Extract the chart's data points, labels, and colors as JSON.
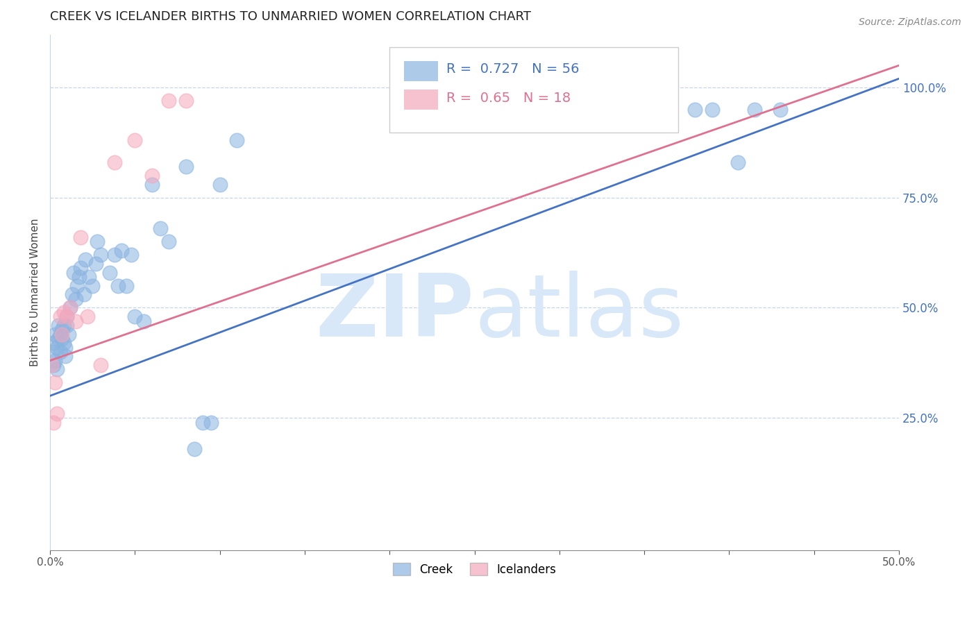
{
  "title": "CREEK VS ICELANDER BIRTHS TO UNMARRIED WOMEN CORRELATION CHART",
  "source": "Source: ZipAtlas.com",
  "ylabel": "Births to Unmarried Women",
  "xlim": [
    0.0,
    0.5
  ],
  "ylim": [
    -0.05,
    1.12
  ],
  "right_yticks": [
    0.0,
    0.25,
    0.5,
    0.75,
    1.0
  ],
  "creek_color": "#8ab4e0",
  "icelander_color": "#f5a8bc",
  "creek_line_color": "#4472c4",
  "icelander_line_color": "#e07090",
  "creek_R": 0.727,
  "creek_N": 56,
  "icelander_R": 0.65,
  "icelander_N": 18,
  "watermark_zip": "ZIP",
  "watermark_atlas": "atlas",
  "watermark_color": "#d8e8f8",
  "grid_color": "#c8d4e8",
  "title_color": "#222222",
  "axis_label_color": "#444444",
  "right_tick_color": "#4472c4",
  "legend_border_color": "#cccccc",
  "creek_line_x0": 0.0,
  "creek_line_y0": 0.3,
  "creek_line_x1": 0.5,
  "creek_line_y1": 1.02,
  "icel_line_x0": 0.0,
  "icel_line_y0": 0.38,
  "icel_line_x1": 0.5,
  "icel_line_y1": 1.05,
  "creek_x": [
    0.001,
    0.002,
    0.002,
    0.003,
    0.003,
    0.004,
    0.004,
    0.005,
    0.005,
    0.006,
    0.006,
    0.007,
    0.007,
    0.008,
    0.008,
    0.009,
    0.009,
    0.01,
    0.01,
    0.011,
    0.012,
    0.013,
    0.014,
    0.015,
    0.016,
    0.017,
    0.018,
    0.02,
    0.021,
    0.023,
    0.025,
    0.027,
    0.028,
    0.03,
    0.035,
    0.038,
    0.04,
    0.042,
    0.045,
    0.048,
    0.05,
    0.055,
    0.06,
    0.065,
    0.07,
    0.08,
    0.085,
    0.09,
    0.095,
    0.1,
    0.11,
    0.38,
    0.39,
    0.405,
    0.415,
    0.43
  ],
  "creek_y": [
    0.4,
    0.42,
    0.37,
    0.44,
    0.38,
    0.41,
    0.36,
    0.43,
    0.46,
    0.44,
    0.4,
    0.43,
    0.45,
    0.42,
    0.46,
    0.41,
    0.39,
    0.46,
    0.48,
    0.44,
    0.5,
    0.53,
    0.58,
    0.52,
    0.55,
    0.57,
    0.59,
    0.53,
    0.61,
    0.57,
    0.55,
    0.6,
    0.65,
    0.62,
    0.58,
    0.62,
    0.55,
    0.63,
    0.55,
    0.62,
    0.48,
    0.47,
    0.78,
    0.68,
    0.65,
    0.82,
    0.18,
    0.24,
    0.24,
    0.78,
    0.88,
    0.95,
    0.95,
    0.83,
    0.95,
    0.95
  ],
  "icelander_x": [
    0.001,
    0.002,
    0.003,
    0.004,
    0.006,
    0.007,
    0.008,
    0.01,
    0.012,
    0.015,
    0.018,
    0.022,
    0.03,
    0.038,
    0.05,
    0.06,
    0.07,
    0.08
  ],
  "icelander_y": [
    0.37,
    0.24,
    0.33,
    0.26,
    0.48,
    0.44,
    0.49,
    0.48,
    0.5,
    0.47,
    0.66,
    0.48,
    0.37,
    0.83,
    0.88,
    0.8,
    0.97,
    0.97
  ]
}
